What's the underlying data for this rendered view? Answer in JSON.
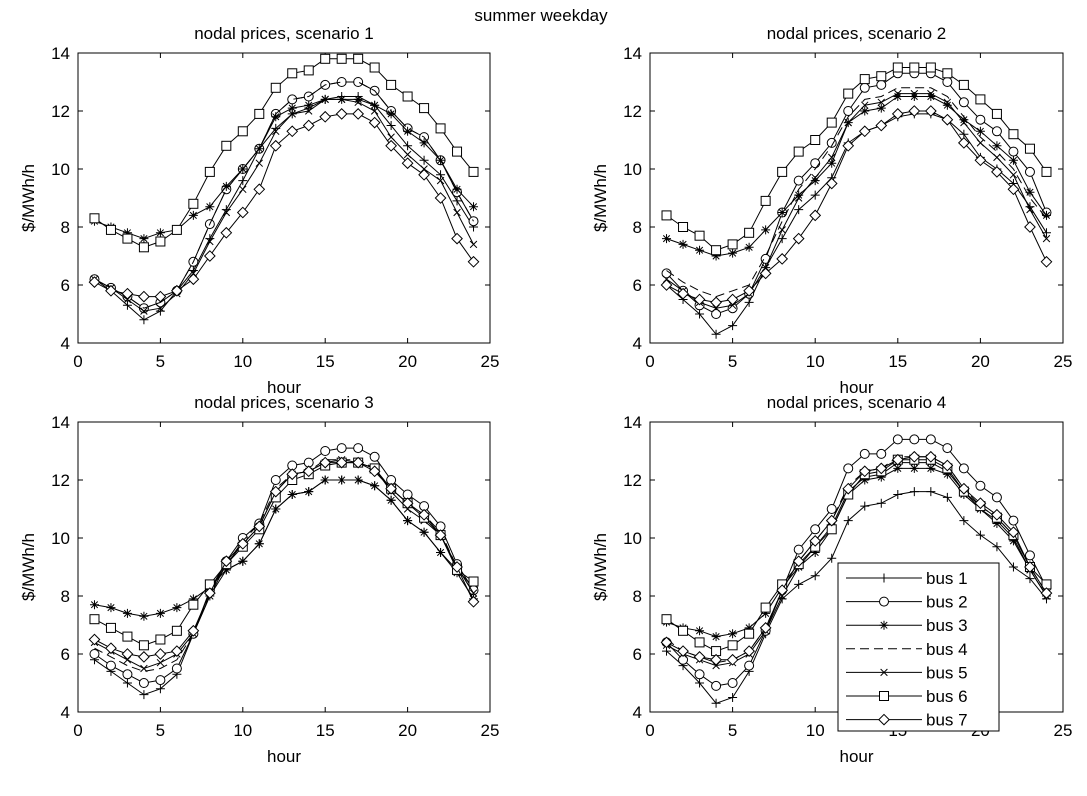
{
  "figure": {
    "suptitle": "summer weekday"
  },
  "legend": {
    "entries": [
      {
        "label": "bus  1",
        "marker": "plus"
      },
      {
        "label": "bus  2",
        "marker": "circle"
      },
      {
        "label": "bus  3",
        "marker": "star"
      },
      {
        "label": "bus  4",
        "marker": "none-dashed"
      },
      {
        "label": "bus  5",
        "marker": "x"
      },
      {
        "label": "bus  6",
        "marker": "square"
      },
      {
        "label": "bus  7",
        "marker": "diamond"
      }
    ],
    "placement": "lower-right of scenario 4 panel"
  },
  "chart_data": [
    {
      "type": "line",
      "title": "nodal prices, scenario 1",
      "xlabel": "hour",
      "ylabel": "$/MWh/h",
      "xlim": [
        0,
        25
      ],
      "ylim": [
        4,
        14
      ],
      "xticks": [
        0,
        5,
        10,
        15,
        20,
        25
      ],
      "yticks": [
        4,
        6,
        8,
        10,
        12,
        14
      ],
      "grid": false,
      "x": [
        1,
        2,
        3,
        4,
        5,
        6,
        7,
        8,
        9,
        10,
        11,
        12,
        13,
        14,
        15,
        16,
        17,
        18,
        19,
        20,
        21,
        22,
        23,
        24
      ],
      "series": [
        {
          "name": "bus 1",
          "values": [
            6.2,
            5.8,
            5.3,
            4.8,
            5.1,
            5.8,
            6.5,
            7.6,
            8.6,
            9.6,
            10.7,
            11.4,
            11.9,
            12.1,
            12.4,
            12.5,
            12.5,
            12.2,
            11.5,
            10.8,
            10.3,
            9.8,
            8.9,
            8.0
          ]
        },
        {
          "name": "bus 2",
          "values": [
            6.2,
            5.9,
            5.6,
            5.2,
            5.4,
            5.8,
            6.8,
            8.1,
            9.3,
            10.0,
            10.7,
            11.9,
            12.4,
            12.5,
            12.9,
            13.0,
            13.0,
            12.7,
            12.0,
            11.4,
            11.1,
            10.3,
            9.2,
            8.2
          ]
        },
        {
          "name": "bus 3",
          "values": [
            8.2,
            8.0,
            7.8,
            7.6,
            7.8,
            7.9,
            8.4,
            8.7,
            9.4,
            10.0,
            10.7,
            11.8,
            12.1,
            12.2,
            12.4,
            12.4,
            12.4,
            12.2,
            11.9,
            11.3,
            10.9,
            10.3,
            9.3,
            8.7
          ]
        },
        {
          "name": "bus 4",
          "values": [
            6.2,
            5.9,
            5.6,
            5.2,
            5.4,
            5.8,
            6.8,
            8.1,
            9.3,
            10.0,
            10.7,
            11.9,
            12.4,
            12.5,
            12.9,
            13.0,
            13.0,
            12.7,
            12.0,
            11.4,
            11.1,
            10.3,
            9.2,
            8.2
          ]
        },
        {
          "name": "bus 5",
          "values": [
            6.2,
            5.9,
            5.5,
            5.1,
            5.2,
            5.7,
            6.4,
            7.5,
            8.5,
            9.3,
            10.2,
            11.3,
            11.9,
            12.0,
            12.4,
            12.4,
            12.3,
            12.0,
            11.1,
            10.5,
            10.0,
            9.6,
            8.5,
            7.4
          ]
        },
        {
          "name": "bus 6",
          "values": [
            8.3,
            7.9,
            7.6,
            7.3,
            7.5,
            7.9,
            8.8,
            9.9,
            10.8,
            11.3,
            11.9,
            12.8,
            13.3,
            13.4,
            13.8,
            13.8,
            13.8,
            13.5,
            12.9,
            12.5,
            12.1,
            11.4,
            10.6,
            9.9
          ]
        },
        {
          "name": "bus 7",
          "values": [
            6.1,
            5.8,
            5.7,
            5.6,
            5.6,
            5.8,
            6.2,
            7.0,
            7.8,
            8.5,
            9.3,
            10.8,
            11.3,
            11.5,
            11.8,
            11.9,
            11.9,
            11.6,
            10.8,
            10.2,
            9.8,
            9.0,
            7.6,
            6.8
          ]
        }
      ]
    },
    {
      "type": "line",
      "title": "nodal prices, scenario 2",
      "xlabel": "hour",
      "ylabel": "$/MWh/h",
      "xlim": [
        0,
        25
      ],
      "ylim": [
        4,
        14
      ],
      "xticks": [
        0,
        5,
        10,
        15,
        20,
        25
      ],
      "yticks": [
        4,
        6,
        8,
        10,
        12,
        14
      ],
      "grid": false,
      "x": [
        1,
        2,
        3,
        4,
        5,
        6,
        7,
        8,
        9,
        10,
        11,
        12,
        13,
        14,
        15,
        16,
        17,
        18,
        19,
        20,
        21,
        22,
        23,
        24
      ],
      "series": [
        {
          "name": "bus 1",
          "values": [
            6.0,
            5.5,
            5.0,
            4.3,
            4.6,
            5.4,
            6.6,
            7.6,
            8.6,
            9.1,
            9.7,
            10.9,
            11.3,
            11.5,
            11.8,
            11.9,
            11.9,
            11.7,
            11.2,
            10.4,
            10.0,
            9.5,
            8.7,
            7.8
          ]
        },
        {
          "name": "bus 2",
          "values": [
            6.4,
            5.8,
            5.3,
            5.0,
            5.2,
            5.7,
            6.9,
            8.5,
            9.6,
            10.2,
            10.9,
            12.0,
            12.8,
            12.9,
            13.3,
            13.3,
            13.3,
            13.0,
            12.3,
            11.7,
            11.3,
            10.6,
            9.9,
            8.5
          ]
        },
        {
          "name": "bus 3",
          "values": [
            7.6,
            7.4,
            7.2,
            7.0,
            7.1,
            7.3,
            7.9,
            8.5,
            9.1,
            9.6,
            10.2,
            11.6,
            12.0,
            12.1,
            12.5,
            12.5,
            12.5,
            12.2,
            11.7,
            11.3,
            10.8,
            10.3,
            9.2,
            8.4
          ]
        },
        {
          "name": "bus 4",
          "values": [
            6.5,
            6.1,
            5.8,
            5.6,
            5.8,
            6.0,
            7.0,
            8.2,
            9.3,
            10.0,
            10.8,
            11.8,
            12.4,
            12.5,
            12.8,
            12.8,
            12.8,
            12.5,
            11.8,
            11.1,
            10.6,
            10.0,
            9.0,
            8.3
          ]
        },
        {
          "name": "bus 5",
          "values": [
            6.2,
            5.8,
            5.4,
            5.2,
            5.3,
            5.7,
            6.6,
            7.9,
            9.0,
            9.7,
            10.4,
            11.6,
            12.2,
            12.3,
            12.6,
            12.6,
            12.6,
            12.3,
            11.6,
            10.9,
            10.4,
            9.8,
            8.6,
            7.6
          ]
        },
        {
          "name": "bus 6",
          "values": [
            8.4,
            8.0,
            7.7,
            7.2,
            7.4,
            7.8,
            8.9,
            9.9,
            10.6,
            11.0,
            11.6,
            12.6,
            13.1,
            13.2,
            13.5,
            13.5,
            13.5,
            13.3,
            12.9,
            12.4,
            11.9,
            11.2,
            10.7,
            9.9
          ]
        },
        {
          "name": "bus 7",
          "values": [
            6.0,
            5.7,
            5.5,
            5.4,
            5.5,
            5.8,
            6.4,
            6.9,
            7.6,
            8.4,
            9.5,
            10.8,
            11.3,
            11.5,
            11.9,
            12.0,
            12.0,
            11.7,
            10.9,
            10.3,
            9.9,
            9.3,
            8.0,
            6.8
          ]
        }
      ]
    },
    {
      "type": "line",
      "title": "nodal prices, scenario 3",
      "xlabel": "hour",
      "ylabel": "$/MWh/h",
      "xlim": [
        0,
        25
      ],
      "ylim": [
        4,
        14
      ],
      "xticks": [
        0,
        5,
        10,
        15,
        20,
        25
      ],
      "yticks": [
        4,
        6,
        8,
        10,
        12,
        14
      ],
      "grid": false,
      "x": [
        1,
        2,
        3,
        4,
        5,
        6,
        7,
        8,
        9,
        10,
        11,
        12,
        13,
        14,
        15,
        16,
        17,
        18,
        19,
        20,
        21,
        22,
        23,
        24
      ],
      "series": [
        {
          "name": "bus 1",
          "values": [
            5.8,
            5.4,
            5.0,
            4.6,
            4.8,
            5.3,
            6.7,
            8.0,
            8.9,
            9.2,
            9.8,
            11.0,
            11.5,
            11.6,
            12.0,
            12.0,
            12.0,
            11.8,
            11.3,
            10.6,
            10.2,
            9.5,
            8.9,
            8.3
          ]
        },
        {
          "name": "bus 2",
          "values": [
            6.0,
            5.6,
            5.3,
            5.0,
            5.1,
            5.5,
            6.7,
            8.2,
            9.2,
            10.0,
            10.5,
            12.0,
            12.5,
            12.6,
            13.0,
            13.1,
            13.1,
            12.8,
            12.0,
            11.5,
            11.1,
            10.4,
            9.1,
            8.2
          ]
        },
        {
          "name": "bus 3",
          "values": [
            7.7,
            7.6,
            7.4,
            7.3,
            7.4,
            7.6,
            7.9,
            8.3,
            8.9,
            9.2,
            9.8,
            11.0,
            11.5,
            11.6,
            12.0,
            12.0,
            12.0,
            11.8,
            11.3,
            10.6,
            10.2,
            9.5,
            8.8,
            7.9
          ]
        },
        {
          "name": "bus 4",
          "values": [
            6.2,
            5.9,
            5.6,
            5.4,
            5.5,
            5.8,
            6.7,
            8.1,
            9.1,
            9.9,
            10.5,
            11.7,
            12.2,
            12.3,
            12.7,
            12.7,
            12.7,
            12.4,
            11.7,
            11.2,
            10.8,
            10.2,
            9.0,
            8.1
          ]
        },
        {
          "name": "bus 5",
          "values": [
            6.4,
            6.1,
            5.8,
            5.5,
            5.7,
            6.0,
            6.7,
            8.0,
            9.1,
            9.8,
            10.4,
            11.6,
            12.2,
            12.3,
            12.6,
            12.7,
            12.6,
            12.4,
            11.6,
            11.0,
            10.6,
            10.1,
            9.0,
            8.1
          ]
        },
        {
          "name": "bus 6",
          "values": [
            7.2,
            6.9,
            6.6,
            6.3,
            6.5,
            6.8,
            7.7,
            8.4,
            9.1,
            9.7,
            10.3,
            11.4,
            12.0,
            12.2,
            12.5,
            12.6,
            12.6,
            12.4,
            11.7,
            11.2,
            10.7,
            10.1,
            8.9,
            8.5
          ]
        },
        {
          "name": "bus 7",
          "values": [
            6.5,
            6.2,
            6.0,
            5.9,
            6.0,
            6.1,
            6.8,
            8.1,
            9.2,
            9.8,
            10.4,
            11.6,
            12.2,
            12.3,
            12.6,
            12.6,
            12.6,
            12.3,
            11.7,
            11.2,
            10.8,
            10.1,
            9.0,
            7.8
          ]
        }
      ]
    },
    {
      "type": "line",
      "title": "nodal prices, scenario 4",
      "xlabel": "hour",
      "ylabel": "$/MWh/h",
      "xlim": [
        0,
        25
      ],
      "ylim": [
        4,
        14
      ],
      "xticks": [
        0,
        5,
        10,
        15,
        20,
        25
      ],
      "yticks": [
        4,
        6,
        8,
        10,
        12,
        14
      ],
      "grid": false,
      "x": [
        1,
        2,
        3,
        4,
        5,
        6,
        7,
        8,
        9,
        10,
        11,
        12,
        13,
        14,
        15,
        16,
        17,
        18,
        19,
        20,
        21,
        22,
        23,
        24
      ],
      "series": [
        {
          "name": "bus 1",
          "values": [
            6.1,
            5.6,
            5.0,
            4.3,
            4.5,
            5.4,
            6.7,
            7.9,
            8.4,
            8.7,
            9.3,
            10.6,
            11.1,
            11.2,
            11.5,
            11.6,
            11.6,
            11.4,
            10.6,
            10.1,
            9.7,
            9.0,
            8.6,
            7.9
          ]
        },
        {
          "name": "bus 2",
          "values": [
            6.4,
            5.8,
            5.3,
            4.9,
            5.0,
            5.6,
            6.8,
            8.2,
            9.6,
            10.3,
            11.0,
            12.4,
            12.9,
            12.9,
            13.4,
            13.4,
            13.4,
            13.1,
            12.4,
            11.8,
            11.4,
            10.6,
            9.4,
            8.3
          ]
        },
        {
          "name": "bus 3",
          "values": [
            7.1,
            6.9,
            6.8,
            6.6,
            6.7,
            6.9,
            7.4,
            8.3,
            9.0,
            9.5,
            10.3,
            11.5,
            12.0,
            12.1,
            12.4,
            12.4,
            12.4,
            12.2,
            11.5,
            11.0,
            10.5,
            9.9,
            8.9,
            8.0
          ]
        },
        {
          "name": "bus 4",
          "values": [
            6.5,
            6.1,
            5.9,
            5.7,
            5.8,
            6.1,
            6.9,
            8.2,
            9.2,
            9.9,
            10.6,
            11.8,
            12.3,
            12.4,
            12.8,
            12.8,
            12.8,
            12.5,
            11.7,
            11.1,
            10.7,
            10.1,
            9.0,
            8.1
          ]
        },
        {
          "name": "bus 5",
          "values": [
            6.3,
            6.0,
            5.8,
            5.6,
            5.7,
            6.0,
            6.8,
            8.0,
            9.0,
            9.7,
            10.4,
            11.6,
            12.1,
            12.2,
            12.6,
            12.6,
            12.6,
            12.3,
            11.6,
            11.0,
            10.6,
            10.0,
            8.9,
            8.0
          ]
        },
        {
          "name": "bus 6",
          "values": [
            7.2,
            6.8,
            6.4,
            6.1,
            6.3,
            6.7,
            7.6,
            8.4,
            9.1,
            9.7,
            10.3,
            11.5,
            12.2,
            12.3,
            12.7,
            12.7,
            12.7,
            12.4,
            11.6,
            11.1,
            10.7,
            10.1,
            9.0,
            8.4
          ]
        },
        {
          "name": "bus 7",
          "values": [
            6.4,
            6.1,
            5.9,
            5.8,
            5.8,
            6.1,
            6.9,
            8.2,
            9.2,
            9.9,
            10.6,
            11.7,
            12.3,
            12.4,
            12.7,
            12.8,
            12.8,
            12.5,
            11.7,
            11.2,
            10.8,
            10.2,
            9.0,
            8.1
          ]
        }
      ]
    }
  ]
}
